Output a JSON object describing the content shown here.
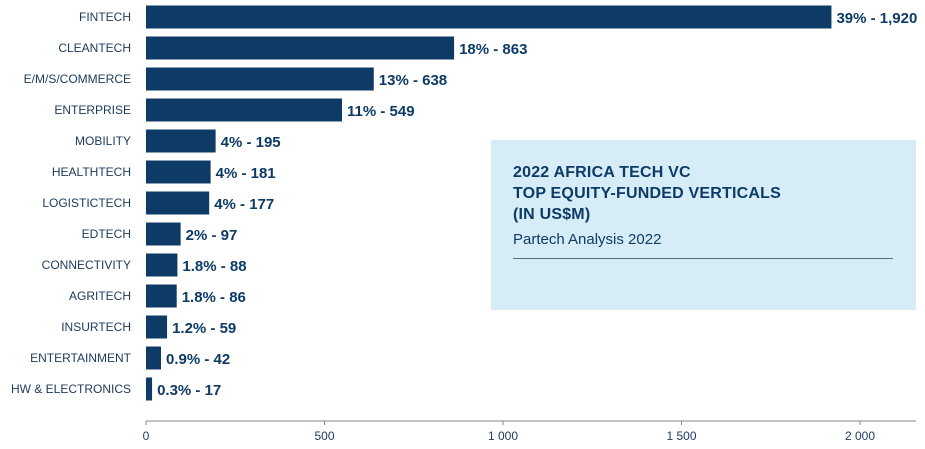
{
  "chart_data": {
    "type": "bar",
    "orientation": "horizontal",
    "categories": [
      "FINTECH",
      "CLEANTECH",
      "E/M/S/COMMERCE",
      "ENTERPRISE",
      "MOBILITY",
      "HEALTHTECH",
      "LOGISTICTECH",
      "EDTECH",
      "CONNECTIVITY",
      "AGRITECH",
      "INSURTECH",
      "ENTERTAINMENT",
      "HW & ELECTRONICS"
    ],
    "values": [
      1920,
      863,
      638,
      549,
      195,
      181,
      177,
      97,
      88,
      86,
      59,
      42,
      17
    ],
    "data_labels": [
      "39% - 1,920",
      "18% - 863",
      "13% - 638",
      "11% - 549",
      "4% - 195",
      "4% - 181",
      "4% - 177",
      "2% - 97",
      "1.8% - 88",
      "1.8% - 86",
      "1.2% - 59",
      "0.9% - 42",
      "0.3% - 17"
    ],
    "title": "2022 AFRICA TECH VC\nTOP EQUITY-FUNDED VERTICALS\n(IN US$M)",
    "subtitle": "Partech Analysis 2022",
    "xlim": [
      0,
      2150
    ],
    "xticks": [
      0,
      500,
      1000,
      1500,
      2000
    ],
    "xtick_labels": [
      "0",
      "500",
      "1 000",
      "1 500",
      "2 000"
    ],
    "xlabel": "",
    "ylabel": "",
    "grid": false,
    "bar_color": "#0d3b66",
    "info_box_color": "#d6ecf7"
  }
}
